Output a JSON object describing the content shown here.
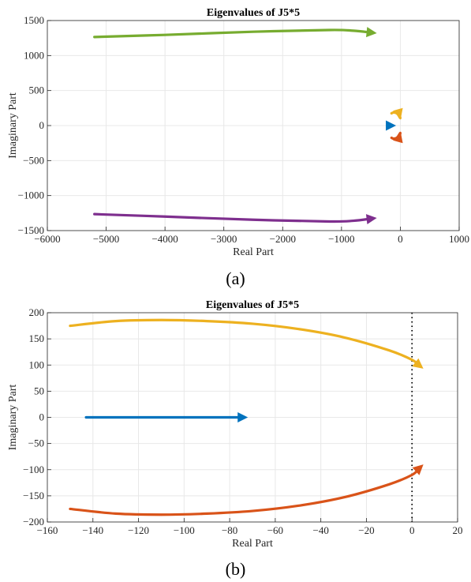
{
  "chart_data": [
    {
      "type": "line",
      "title": "Eigenvalues of J5*5",
      "xlabel": "Real Part",
      "ylabel": "Imaginary Part",
      "xlim": [
        -6000,
        1000
      ],
      "ylim": [
        -1500,
        1500
      ],
      "xticks": [
        -6000,
        -5000,
        -4000,
        -3000,
        -2000,
        -1000,
        0,
        1000
      ],
      "yticks": [
        -1500,
        -1000,
        -500,
        0,
        500,
        1000,
        1500
      ],
      "grid": true,
      "caption": "(a)",
      "series": [
        {
          "color": "#77ac30",
          "arrow": true,
          "points": [
            [
              -5200,
              1265
            ],
            [
              -4000,
              1295
            ],
            [
              -2500,
              1340
            ],
            [
              -1200,
              1365
            ],
            [
              -800,
              1355
            ],
            [
              -400,
              1320
            ]
          ]
        },
        {
          "color": "#7e2f8e",
          "arrow": true,
          "points": [
            [
              -5200,
              -1265
            ],
            [
              -4000,
              -1300
            ],
            [
              -2500,
              -1345
            ],
            [
              -1200,
              -1370
            ],
            [
              -800,
              -1360
            ],
            [
              -400,
              -1320
            ]
          ]
        },
        {
          "color": "#edb120",
          "arrow": true,
          "points": [
            [
              -150,
              175
            ],
            [
              -110,
              187
            ],
            [
              -50,
              168
            ],
            [
              0,
              105
            ],
            [
              5,
              90
            ]
          ]
        },
        {
          "color": "#0072bd",
          "arrow": true,
          "points": [
            [
              -143,
              0
            ],
            [
              -72,
              0
            ]
          ]
        },
        {
          "color": "#d95319",
          "arrow": true,
          "points": [
            [
              -150,
              -175
            ],
            [
              -110,
              -187
            ],
            [
              -50,
              -168
            ],
            [
              0,
              -105
            ],
            [
              5,
              -90
            ]
          ]
        }
      ]
    },
    {
      "type": "line",
      "title": "Eigenvalues of J5*5",
      "xlabel": "Real Part",
      "ylabel": "Imaginary Part",
      "xlim": [
        -160,
        20
      ],
      "ylim": [
        -200,
        200
      ],
      "xticks": [
        -160,
        -140,
        -120,
        -100,
        -80,
        -60,
        -40,
        -20,
        0,
        20
      ],
      "yticks": [
        -200,
        -150,
        -100,
        -50,
        0,
        50,
        100,
        150,
        200
      ],
      "grid": true,
      "vline_x": 0,
      "caption": "(b)",
      "series": [
        {
          "color": "#edb120",
          "arrow": true,
          "points": [
            [
              -150,
              175
            ],
            [
              -130,
              184
            ],
            [
              -110,
              186
            ],
            [
              -90,
              184
            ],
            [
              -70,
              179
            ],
            [
              -50,
              169
            ],
            [
              -30,
              153
            ],
            [
              -10,
              128
            ],
            [
              0,
              110
            ],
            [
              5,
              93
            ]
          ]
        },
        {
          "color": "#0072bd",
          "arrow": true,
          "points": [
            [
              -143,
              0
            ],
            [
              -72,
              0
            ]
          ]
        },
        {
          "color": "#d95319",
          "arrow": true,
          "points": [
            [
              -150,
              -175
            ],
            [
              -130,
              -184
            ],
            [
              -110,
              -186
            ],
            [
              -90,
              -184
            ],
            [
              -70,
              -179
            ],
            [
              -50,
              -169
            ],
            [
              -30,
              -153
            ],
            [
              -10,
              -128
            ],
            [
              0,
              -110
            ],
            [
              5,
              -90
            ]
          ]
        }
      ]
    }
  ]
}
